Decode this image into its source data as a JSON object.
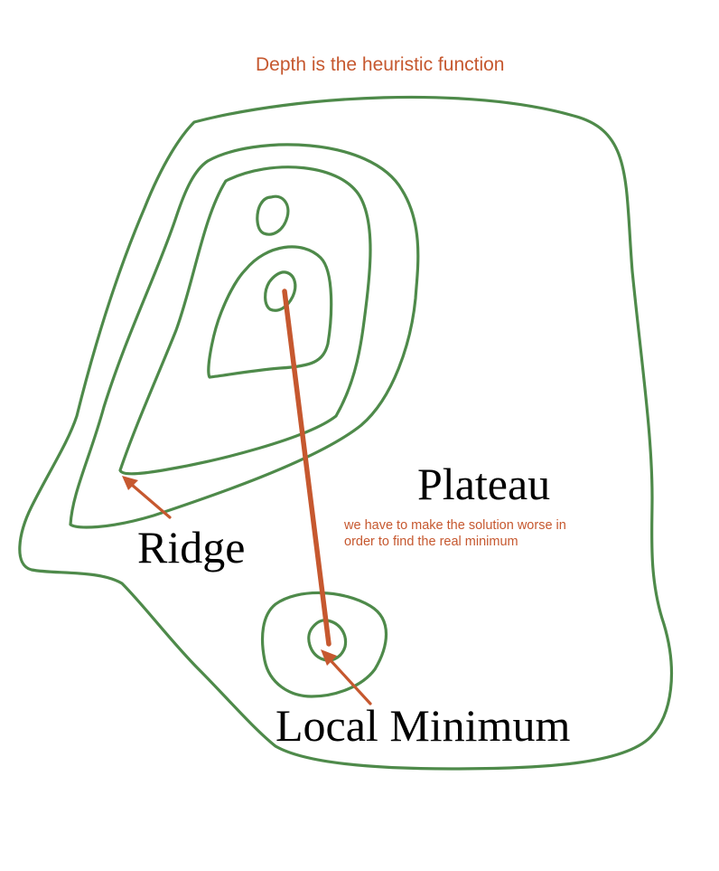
{
  "title": "Depth is the heuristic function",
  "labels": {
    "plateau": "Plateau",
    "ridge": "Ridge",
    "local_minimum": "Local Minimum"
  },
  "note": "we have to make the solution worse in order to find the real minimum",
  "colors": {
    "contour": "#4e8a4a",
    "annotation": "#c6582f",
    "label": "#000000"
  }
}
